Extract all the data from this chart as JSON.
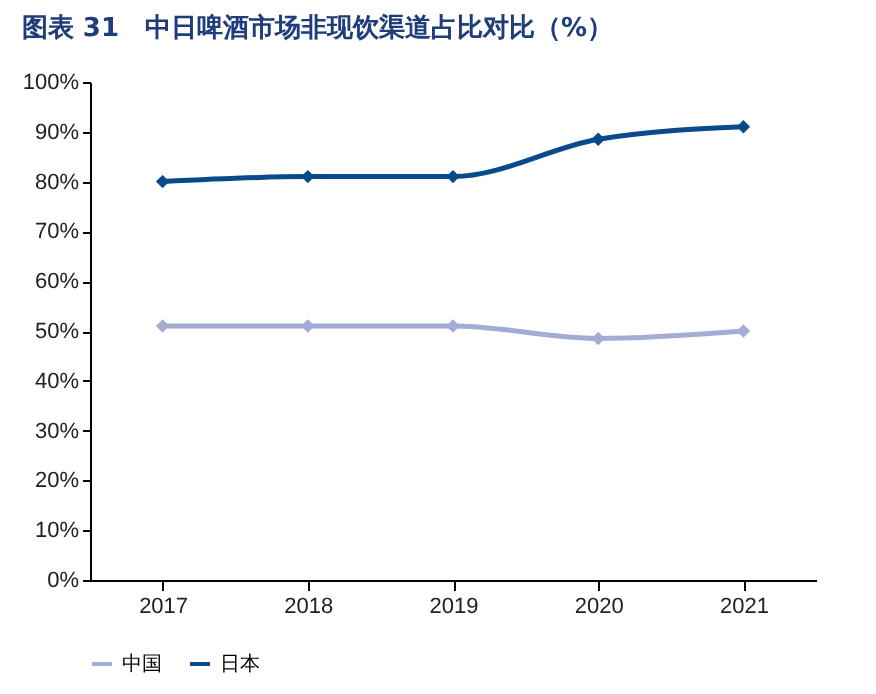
{
  "chart_data": {
    "type": "line",
    "title": "图表 31　中日啤酒市场非现饮渠道占比对比（%）",
    "categories": [
      "2017",
      "2018",
      "2019",
      "2020",
      "2021"
    ],
    "series": [
      {
        "name": "中国",
        "color": "#a3acd4",
        "values": [
          51,
          51,
          51,
          48.5,
          50
        ]
      },
      {
        "name": "日本",
        "color": "#0a4a8a",
        "values": [
          80,
          81,
          81,
          88.5,
          91
        ]
      }
    ],
    "ylim": [
      0,
      100
    ],
    "yticks": [
      {
        "value": 0,
        "label": "0%"
      },
      {
        "value": 10,
        "label": "10%"
      },
      {
        "value": 20,
        "label": "20%"
      },
      {
        "value": 30,
        "label": "30%"
      },
      {
        "value": 40,
        "label": "40%"
      },
      {
        "value": 50,
        "label": "50%"
      },
      {
        "value": 60,
        "label": "60%"
      },
      {
        "value": 70,
        "label": "70%"
      },
      {
        "value": 80,
        "label": "80%"
      },
      {
        "value": 90,
        "label": "90%"
      },
      {
        "value": 100,
        "label": "100%"
      }
    ],
    "grid": false,
    "legend": "bottom",
    "marker": "diamond",
    "line_style": "solid"
  }
}
